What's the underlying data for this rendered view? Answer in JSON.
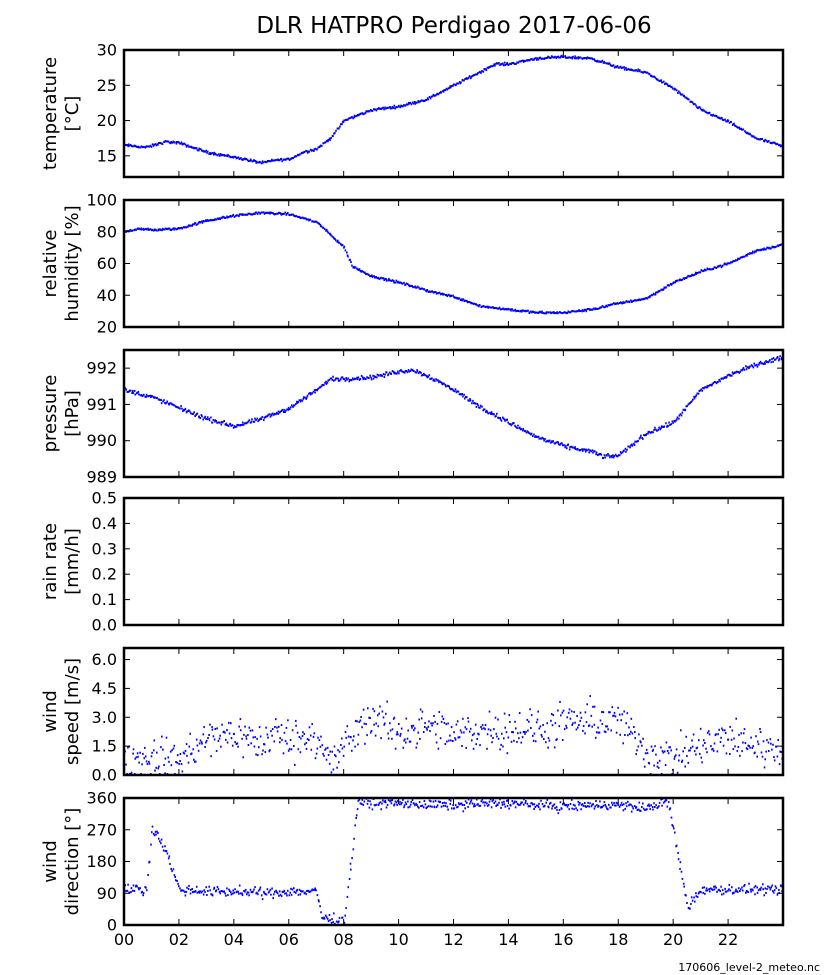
{
  "chart_data": {
    "type": "scatter",
    "title": "DLR HATPRO  Perdigao  2017-06-06",
    "footer": "170606_level-2_meteo.nc",
    "xlim": [
      0,
      24
    ],
    "x_ticks": [
      "00",
      "02",
      "04",
      "06",
      "08",
      "10",
      "12",
      "14",
      "16",
      "18",
      "20",
      "22"
    ],
    "color": "#0000ff",
    "panels": [
      {
        "key": "temperature",
        "ylabel_lines": [
          "temperature",
          "[°C]"
        ],
        "ylim": [
          12,
          30
        ],
        "y_ticks": [
          "15",
          "20",
          "25",
          "30"
        ],
        "y_tick_values": [
          15,
          20,
          25,
          30
        ],
        "noise": 0.15,
        "series": {
          "x": [
            0,
            0.8,
            1.5,
            2,
            3,
            4,
            5,
            5.5,
            6,
            6.5,
            7,
            7.5,
            8,
            9,
            10,
            11,
            12,
            13,
            13.5,
            14,
            15,
            16,
            17,
            18,
            19,
            20,
            21,
            22,
            23,
            24
          ],
          "y": [
            16.5,
            16.2,
            17,
            16.8,
            15.5,
            14.8,
            14,
            14.4,
            14.5,
            15.5,
            16,
            17.5,
            20,
            21.5,
            22,
            23,
            25,
            27,
            28,
            28,
            28.8,
            29,
            28.8,
            27.5,
            26.8,
            24.5,
            21.5,
            19.8,
            17.5,
            16.3
          ]
        }
      },
      {
        "key": "humidity",
        "ylabel_lines": [
          "relative",
          "humidity [%]"
        ],
        "ylim": [
          20,
          100
        ],
        "y_ticks": [
          "20",
          "40",
          "60",
          "80",
          "100"
        ],
        "y_tick_values": [
          20,
          40,
          60,
          80,
          100
        ],
        "noise": 0.6,
        "series": {
          "x": [
            0,
            0.5,
            1,
            2,
            3,
            4,
            5,
            6,
            7,
            8,
            8.3,
            9,
            10,
            11,
            12,
            13,
            14,
            15,
            16,
            17,
            18,
            19,
            20,
            21,
            22,
            23,
            24
          ],
          "y": [
            80,
            82,
            81,
            82,
            87,
            90,
            92,
            91,
            86,
            70,
            58,
            52,
            48,
            43,
            39,
            33,
            31,
            29,
            29,
            31,
            35,
            38,
            48,
            55,
            60,
            68,
            72
          ]
        }
      },
      {
        "key": "pressure",
        "ylabel_lines": [
          "pressure",
          "[hPa]"
        ],
        "ylim": [
          989,
          992.5
        ],
        "y_ticks": [
          "989",
          "990",
          "991",
          "992"
        ],
        "y_tick_values": [
          989,
          990,
          991,
          992
        ],
        "noise": 0.05,
        "series": {
          "x": [
            0,
            1,
            2,
            3,
            4,
            5,
            6,
            7,
            7.5,
            8,
            9,
            10,
            10.5,
            11,
            12,
            13,
            14,
            15,
            16,
            17,
            17.5,
            18,
            19,
            20,
            21,
            22,
            23,
            24
          ],
          "y": [
            991.4,
            991.2,
            990.9,
            990.6,
            990.4,
            990.6,
            990.9,
            991.4,
            991.7,
            991.7,
            991.75,
            991.9,
            991.95,
            991.8,
            991.4,
            990.9,
            990.5,
            990.1,
            989.85,
            989.7,
            989.55,
            989.6,
            990.2,
            990.5,
            991.4,
            991.8,
            992.1,
            992.3
          ]
        }
      },
      {
        "key": "rain",
        "ylabel_lines": [
          "rain rate",
          "[mm/h]"
        ],
        "ylim": [
          0,
          0.5
        ],
        "y_ticks": [
          "0.0",
          "0.1",
          "0.2",
          "0.3",
          "0.4",
          "0.5"
        ],
        "y_tick_values": [
          0,
          0.1,
          0.2,
          0.3,
          0.4,
          0.5
        ],
        "noise": 0,
        "series": {
          "x": [],
          "y": []
        }
      },
      {
        "key": "wind_speed",
        "ylabel_lines": [
          "wind",
          "speed [m/s]"
        ],
        "ylim": [
          0,
          6.6
        ],
        "y_ticks": [
          "0.0",
          "1.5",
          "3.0",
          "4.5",
          "6.0"
        ],
        "y_tick_values": [
          0,
          1.5,
          3,
          4.5,
          6
        ],
        "noise": 0.9,
        "series": {
          "x": [
            0,
            1,
            2,
            3,
            4,
            5,
            5.5,
            6,
            7,
            7.5,
            8,
            9,
            10,
            11,
            12,
            13,
            14,
            15,
            16,
            17,
            18,
            19,
            20,
            21,
            22,
            23,
            24
          ],
          "y": [
            0.7,
            0.9,
            0.8,
            1.8,
            2.2,
            1.6,
            2.2,
            1.8,
            2.1,
            0.5,
            1.5,
            3.0,
            2.2,
            2.5,
            2.0,
            2.3,
            2.4,
            2.3,
            2.6,
            2.8,
            2.8,
            1.2,
            0.8,
            1.5,
            1.8,
            1.6,
            1.2
          ]
        }
      },
      {
        "key": "wind_direction",
        "ylabel_lines": [
          "wind",
          "direction [°]"
        ],
        "ylim": [
          0,
          360
        ],
        "y_ticks": [
          "0",
          "90",
          "180",
          "270",
          "360"
        ],
        "y_tick_values": [
          0,
          90,
          180,
          270,
          360
        ],
        "noise": 12,
        "series": {
          "x": [
            0,
            0.8,
            1,
            1.5,
            2,
            3,
            4,
            5,
            6,
            7,
            7.2,
            8,
            8.5,
            9,
            10,
            11,
            12,
            13,
            14,
            15,
            16,
            17,
            18,
            19,
            19.8,
            20.5,
            21,
            22,
            23,
            24
          ],
          "y": [
            100,
            100,
            280,
            210,
            100,
            95,
            95,
            90,
            95,
            95,
            20,
            10,
            350,
            345,
            345,
            340,
            340,
            345,
            345,
            340,
            335,
            340,
            340,
            330,
            350,
            50,
            100,
            100,
            100,
            95
          ]
        }
      }
    ]
  }
}
